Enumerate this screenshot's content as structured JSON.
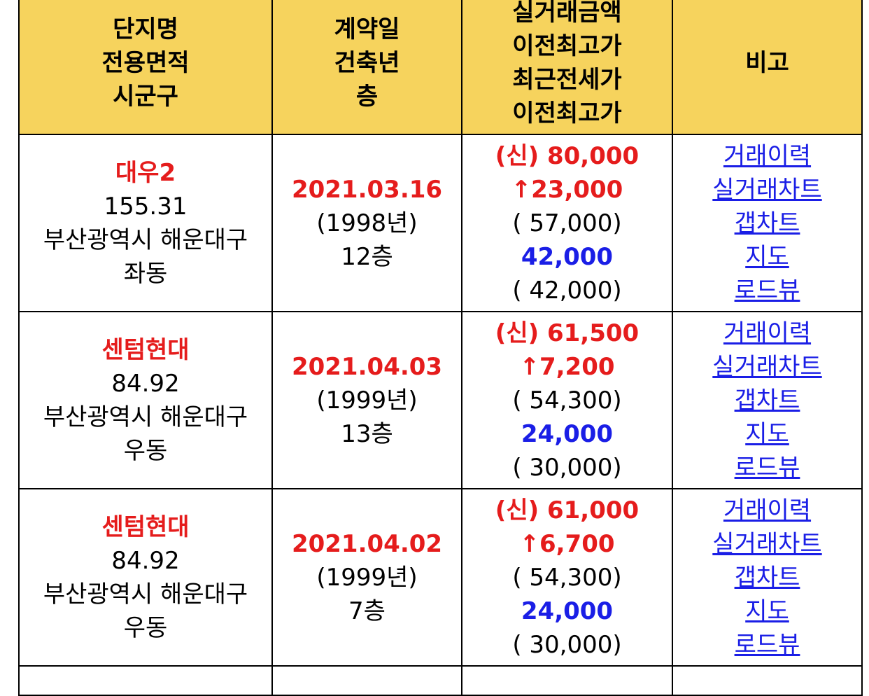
{
  "headers": [
    [
      "단지명",
      "전용면적",
      "시군구"
    ],
    [
      "계약일",
      "건축년",
      "층"
    ],
    [
      "실거래금액",
      "이전최고가",
      "최근전세가",
      "이전최고가"
    ],
    [
      "비고"
    ]
  ],
  "rows": [
    {
      "name": "대우2",
      "area": "155.31",
      "city": "부산광역시 해운대구",
      "dong": "좌동",
      "date": "2021.03.16",
      "built": "(1998년)",
      "floor": "12층",
      "price": "(신) 80,000",
      "diff": "↑23,000",
      "prev_high": "( 57,000)",
      "jeonse": "42,000",
      "jeonse_prev_high": "( 42,000)"
    },
    {
      "name": "센텀현대",
      "area": "84.92",
      "city": "부산광역시 해운대구",
      "dong": "우동",
      "date": "2021.04.03",
      "built": "(1999년)",
      "floor": "13층",
      "price": "(신) 61,500",
      "diff": "↑7,200",
      "prev_high": "( 54,300)",
      "jeonse": "24,000",
      "jeonse_prev_high": "( 30,000)"
    },
    {
      "name": "센텀현대",
      "area": "84.92",
      "city": "부산광역시 해운대구",
      "dong": "우동",
      "date": "2021.04.02",
      "built": "(1999년)",
      "floor": "7층",
      "price": "(신) 61,000",
      "diff": "↑6,700",
      "prev_high": "( 54,300)",
      "jeonse": "24,000",
      "jeonse_prev_high": "( 30,000)"
    }
  ],
  "links": [
    "거래이력",
    "실거래차트",
    "갭차트",
    "지도",
    "로드뷰"
  ],
  "colors": {
    "header_bg": "#f6d35d",
    "highlight_red": "#e51c1c",
    "link_blue": "#1a1ee6"
  }
}
